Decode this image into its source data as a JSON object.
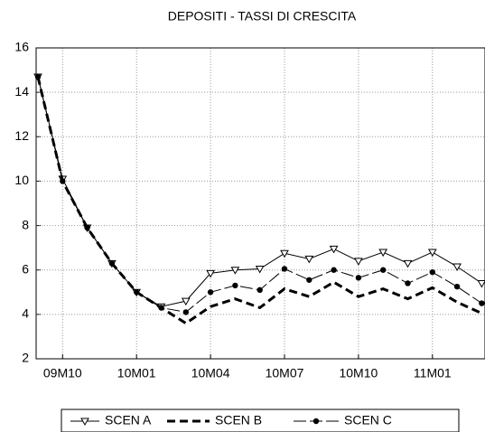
{
  "chart_data": {
    "type": "line",
    "title": "DEPOSITI  - TASSI DI CRESCITA",
    "categories": [
      null,
      "09M10",
      null,
      null,
      "10M01",
      null,
      null,
      "10M04",
      null,
      null,
      "10M07",
      null,
      null,
      "10M10",
      null,
      null,
      "11M01",
      null,
      null
    ],
    "series": [
      {
        "name": "SCEN A",
        "color": "#000000",
        "dash": "solid",
        "marker": "triangle",
        "values": [
          14.7,
          10.1,
          7.9,
          6.3,
          5.0,
          4.35,
          4.6,
          5.85,
          6.0,
          6.05,
          6.75,
          6.5,
          6.95,
          6.4,
          6.8,
          6.3,
          6.8,
          6.15,
          5.4
        ]
      },
      {
        "name": "SCEN B",
        "color": "#000000",
        "dash": "dashed",
        "marker": "none",
        "values": [
          14.7,
          10.0,
          7.9,
          6.3,
          5.0,
          4.3,
          3.6,
          4.35,
          4.7,
          4.3,
          5.15,
          4.8,
          5.45,
          4.8,
          5.15,
          4.7,
          5.2,
          4.55,
          4.05
        ]
      },
      {
        "name": "SCEN C",
        "color": "#000000",
        "dash": "longdash",
        "marker": "circle",
        "values": [
          14.7,
          10.0,
          7.9,
          6.3,
          5.0,
          4.3,
          4.1,
          5.0,
          5.3,
          5.1,
          6.05,
          5.55,
          6.0,
          5.65,
          6.0,
          5.4,
          5.9,
          5.25,
          4.5
        ]
      }
    ],
    "ylim": [
      2,
      16
    ],
    "yticks": [
      2,
      4,
      6,
      8,
      10,
      12,
      14,
      16
    ],
    "grid": true,
    "legend": "bottom"
  }
}
